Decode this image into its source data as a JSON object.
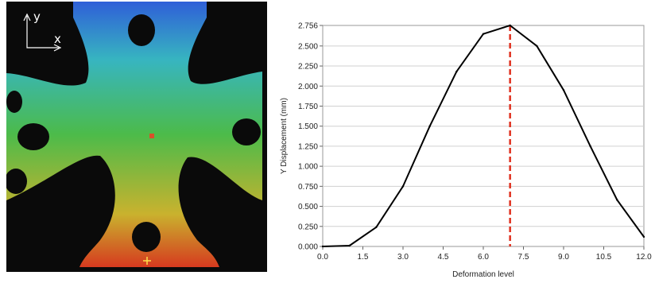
{
  "image": {
    "axes_labels": {
      "vertical": "y",
      "horizontal": "x"
    },
    "colors": {
      "background": "#0a0a0a",
      "top": "#2f5fd8",
      "upper": "#37b5c0",
      "middle": "#4cbb4a",
      "lower": "#c9b22e",
      "bottom": "#d63a1f",
      "center_marker": "#d9502a",
      "bottom_marker": "#ffe14a"
    }
  },
  "chart_data": {
    "type": "line",
    "title": "",
    "xlabel": "Deformation level",
    "ylabel": "Y Displacement (mm)",
    "xlim": [
      0,
      12
    ],
    "ylim": [
      0,
      2.756
    ],
    "x_ticks": [
      "0.0",
      "1.5",
      "3.0",
      "4.5",
      "6.0",
      "7.5",
      "9.0",
      "10.5",
      "12.0"
    ],
    "x_tick_values": [
      0,
      1.5,
      3,
      4.5,
      6,
      7.5,
      9,
      10.5,
      12
    ],
    "y_ticks": [
      "0.000",
      "0.250",
      "0.500",
      "0.750",
      "1.000",
      "1.250",
      "1.500",
      "1.750",
      "2.000",
      "2.250",
      "2.500",
      "2.756"
    ],
    "y_tick_values": [
      0,
      0.25,
      0.5,
      0.75,
      1,
      1.25,
      1.5,
      1.75,
      2,
      2.25,
      2.5,
      2.756
    ],
    "grid": {
      "horizontal": true,
      "vertical": false
    },
    "series": [
      {
        "x": [
          0,
          1,
          2,
          3,
          4,
          5,
          6,
          7,
          8,
          9,
          10,
          11,
          12
        ],
        "y": [
          0.0,
          0.01,
          0.24,
          0.75,
          1.5,
          2.18,
          2.65,
          2.756,
          2.5,
          1.95,
          1.25,
          0.58,
          0.12
        ],
        "color": "#000000"
      }
    ],
    "marker_line": {
      "x": 7,
      "color": "#e0301e",
      "style": "dashed"
    }
  }
}
